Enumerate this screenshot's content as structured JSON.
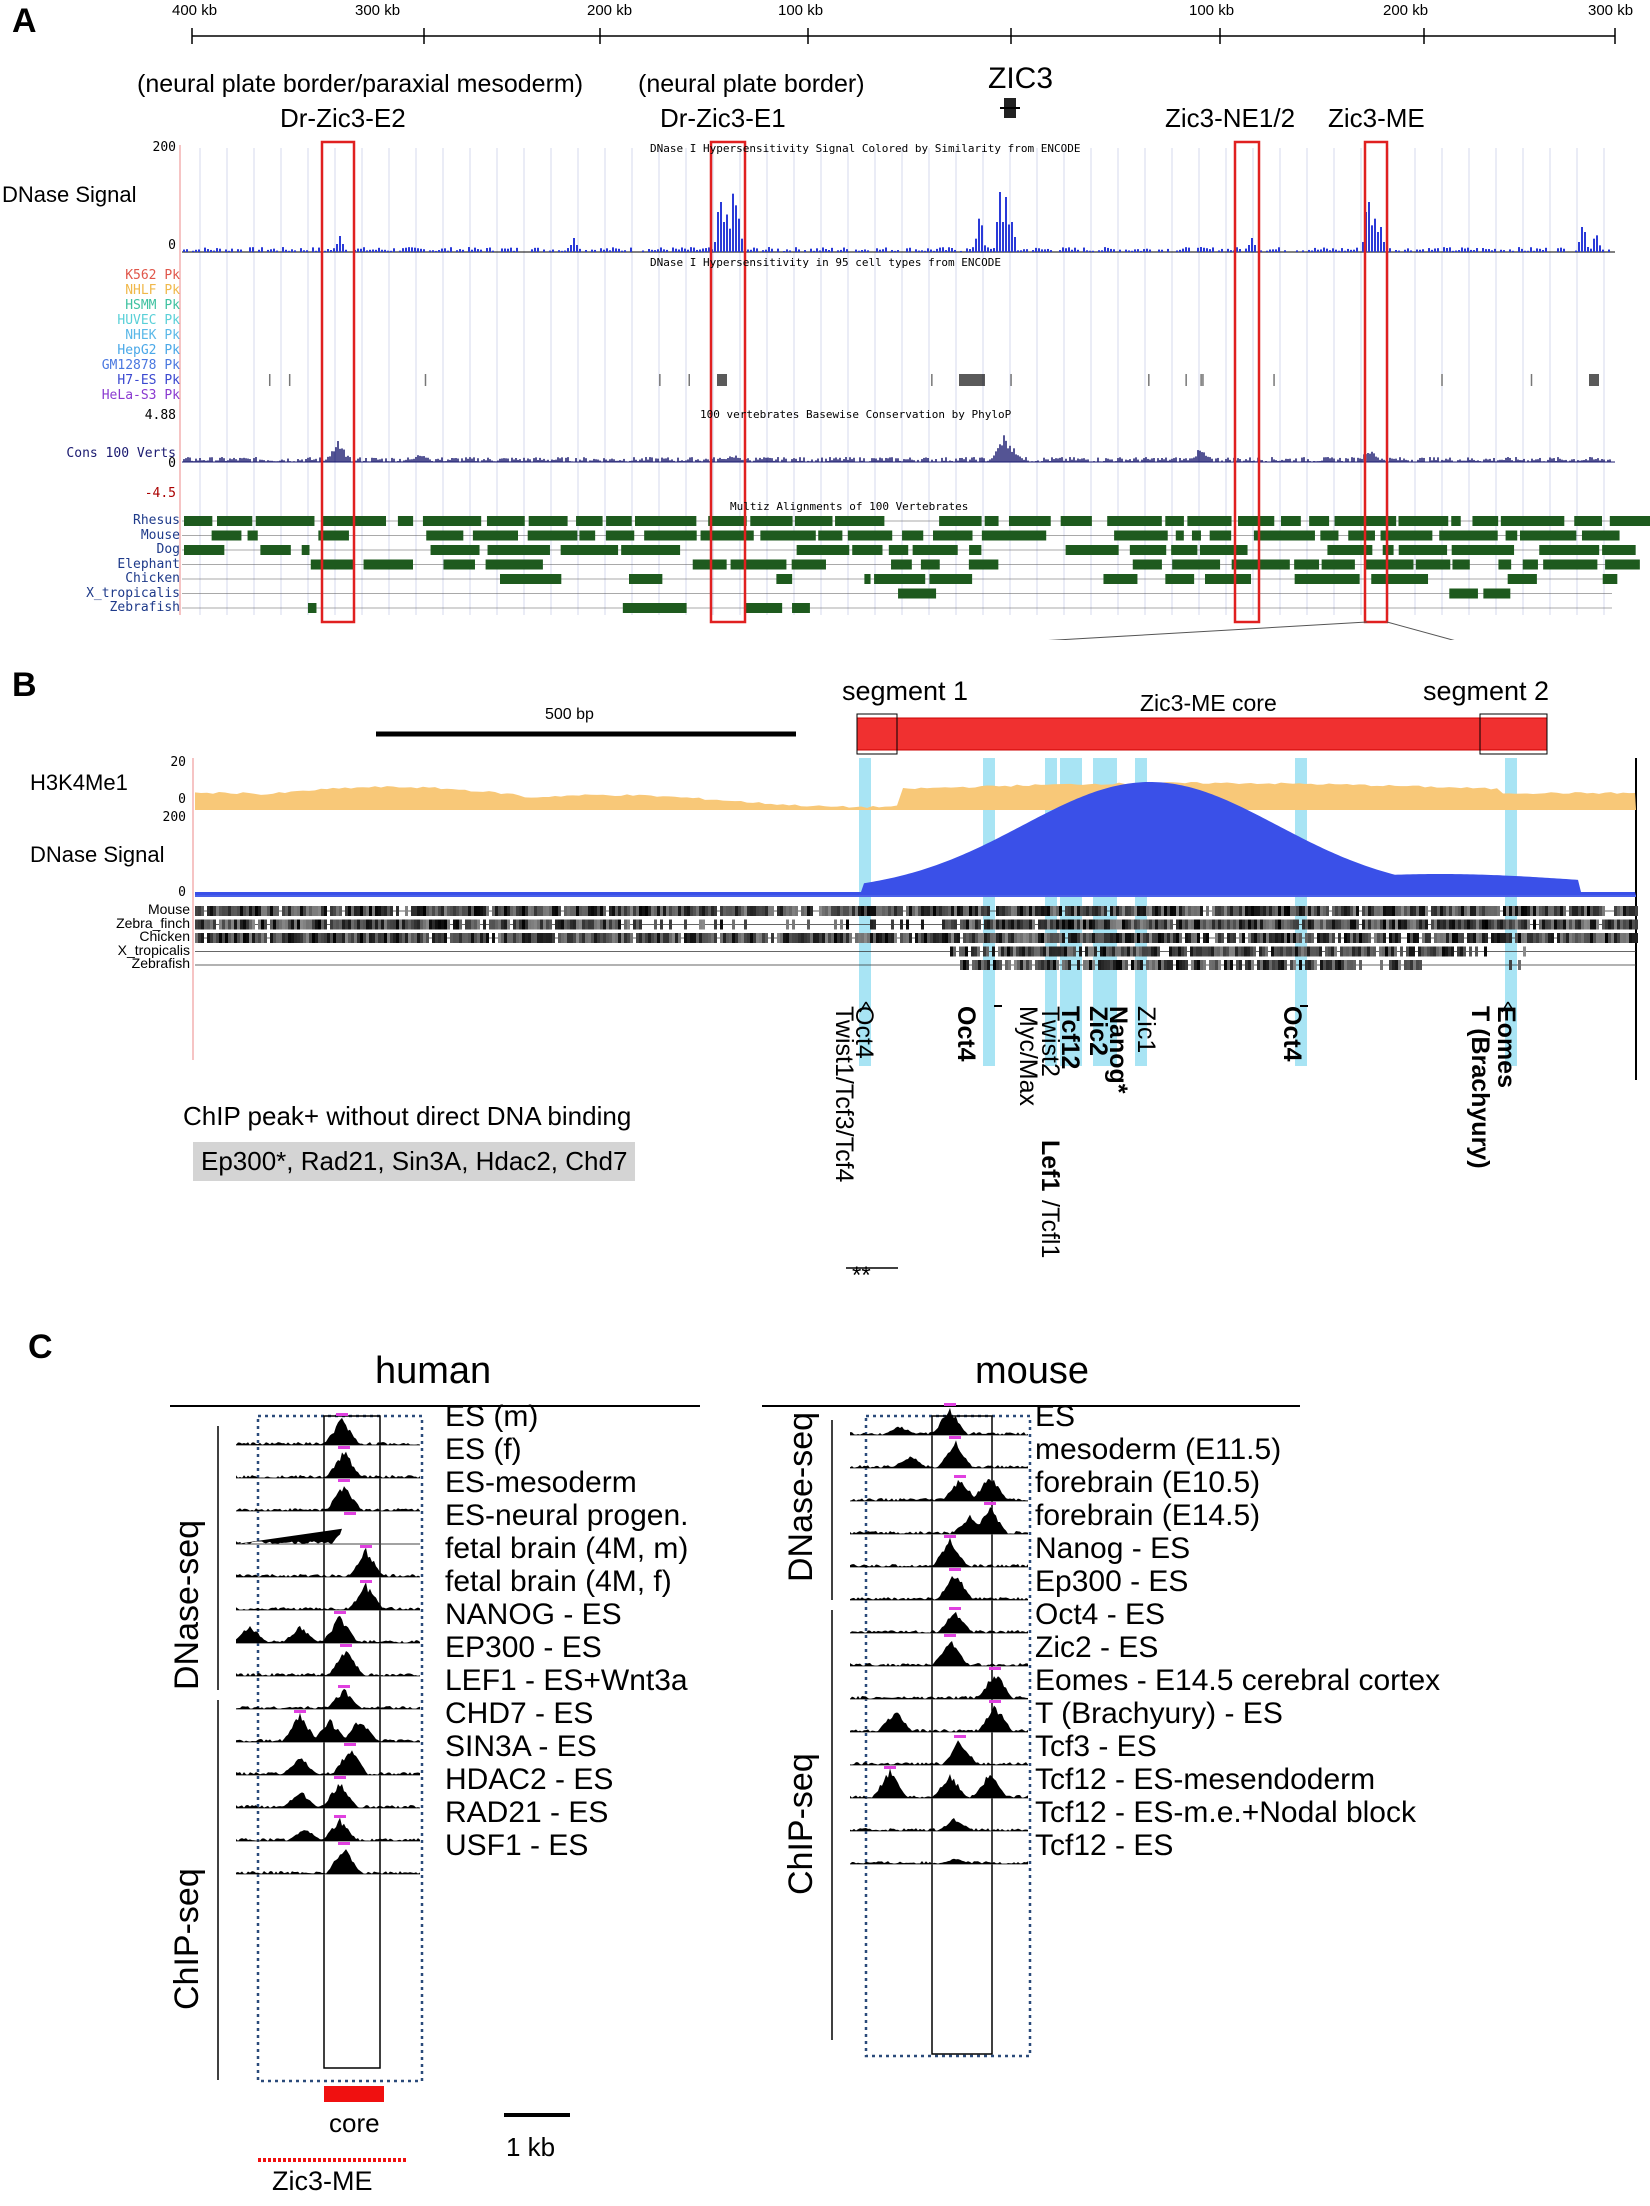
{
  "panelA": {
    "letter": "A",
    "scale_ticks": [
      "400 kb",
      "300 kb",
      "200 kb",
      "100 kb",
      "100 kb",
      "200 kb",
      "300 kb"
    ],
    "gene": "ZIC3",
    "regions": [
      {
        "note": "(neural plate border/paraxial mesoderm)",
        "name": "Dr-Zic3-E2"
      },
      {
        "note": "(neural plate border)",
        "name": "Dr-Zic3-E1"
      },
      {
        "name": "Zic3-NE1/2"
      },
      {
        "name": "Zic3-ME"
      }
    ],
    "dnase_label": "DNase Signal",
    "dnase_max": "200",
    "dnase_min": "0",
    "dnase_title": "DNase I Hypersensitivity Signal Colored by Similarity from ENCODE",
    "cell_title": "DNase I Hypersensitivity in 95 cell types from ENCODE",
    "cell_lines": [
      {
        "name": "K562 Pk",
        "color": "#e0564a"
      },
      {
        "name": "NHLF Pk",
        "color": "#f0b84a"
      },
      {
        "name": "HSMM Pk",
        "color": "#3ec1a0"
      },
      {
        "name": "HUVEC Pk",
        "color": "#5ad0d8"
      },
      {
        "name": "NHEK Pk",
        "color": "#5ab8e8"
      },
      {
        "name": "HepG2 Pk",
        "color": "#4aa8e8"
      },
      {
        "name": "GM12878 Pk",
        "color": "#4a78e0"
      },
      {
        "name": "H7-ES Pk",
        "color": "#3a48d0"
      },
      {
        "name": "HeLa-S3 Pk",
        "color": "#8a3ad0"
      }
    ],
    "cons_max": "4.88",
    "cons_zero": "0",
    "cons_min": "-4.5",
    "cons_label": "Cons 100 Verts",
    "cons_title": "100 vertebrates Basewise Conservation by PhyloP",
    "multiz_title": "Multiz Alignments of 100 Vertebrates",
    "species": [
      "Rhesus",
      "Mouse",
      "Dog",
      "Elephant",
      "Chicken",
      "X_tropicalis",
      "Zebrafish"
    ],
    "colors": {
      "box": "#e02020",
      "dnase": "#2a3ad8",
      "cons": "#1a1a70",
      "multiz": "#1e5a1e"
    }
  },
  "panelB": {
    "letter": "B",
    "scale_label": "500 bp",
    "segment1": "segment 1",
    "segment2": "segment 2",
    "core": "Zic3-ME core",
    "h3k4_label": "H3K4Me1",
    "h3k4_max": "20",
    "h3k4_min": "0",
    "dnase_label": "DNase Signal",
    "dnase_max": "200",
    "dnase_min": "0",
    "species": [
      "Mouse",
      "Zebra_finch",
      "Chicken",
      "X_tropicalis",
      "Zebrafish"
    ],
    "sites": [
      {
        "text": "Oct4",
        "bold": false
      },
      {
        "text": "Twist1/Tcf3/Tcf4",
        "bold": false
      },
      {
        "text": "Oct4",
        "bold": true
      },
      {
        "text": "Twist2",
        "bold": false
      },
      {
        "text": "Myc/Max",
        "bold": false
      },
      {
        "text": "Tcf12",
        "bold": true
      },
      {
        "text": "Lef1",
        "bold": true
      },
      {
        "text": "/Tcfl1",
        "bold": false
      },
      {
        "text": "Zic2",
        "bold": true
      },
      {
        "text": "Nanog*",
        "bold": true
      },
      {
        "text": "Zic1",
        "bold": false
      },
      {
        "text": "Oct4",
        "bold": true
      },
      {
        "text": "Eomes",
        "bold": true
      },
      {
        "text": "T (Brachyury)",
        "bold": true
      }
    ],
    "double_star": "**",
    "chip_note": "ChIP peak+ without direct DNA binding",
    "chip_factors": "Ep300*, Rad21, Sin3A, Hdac2, Chd7"
  },
  "panelC": {
    "letter": "C",
    "human": {
      "title": "human",
      "dnase_group": "DNase-seq",
      "chip_group": "ChIP-seq",
      "tracks": [
        "ES (m)",
        "ES (f)",
        "ES-mesoderm",
        "ES-neural progen.",
        "fetal brain (4M, m)",
        "fetal brain (4M, f)",
        "NANOG - ES",
        "EP300 - ES",
        "LEF1 - ES+Wnt3a",
        "CHD7 - ES",
        "SIN3A - ES",
        "HDAC2 - ES",
        "RAD21 - ES",
        "USF1 - ES"
      ],
      "core_label": "core",
      "region_label": "Zic3-ME"
    },
    "mouse": {
      "title": "mouse",
      "dnase_group": "DNase-seq",
      "chip_group": "ChIP-seq",
      "tracks": [
        "ES",
        "mesoderm (E11.5)",
        "forebrain (E10.5)",
        "forebrain (E14.5)",
        "Nanog - ES",
        "Ep300 - ES",
        "Oct4 - ES",
        "Zic2 - ES",
        "Eomes - E14.5 cerebral cortex",
        "T (Brachyury) - ES",
        "Tcf3 - ES",
        "Tcf12 - ES-mesendoderm",
        "Tcf12 - ES-m.e.+Nodal block",
        "Tcf12 - ES"
      ]
    },
    "scale_label": "1 kb"
  }
}
